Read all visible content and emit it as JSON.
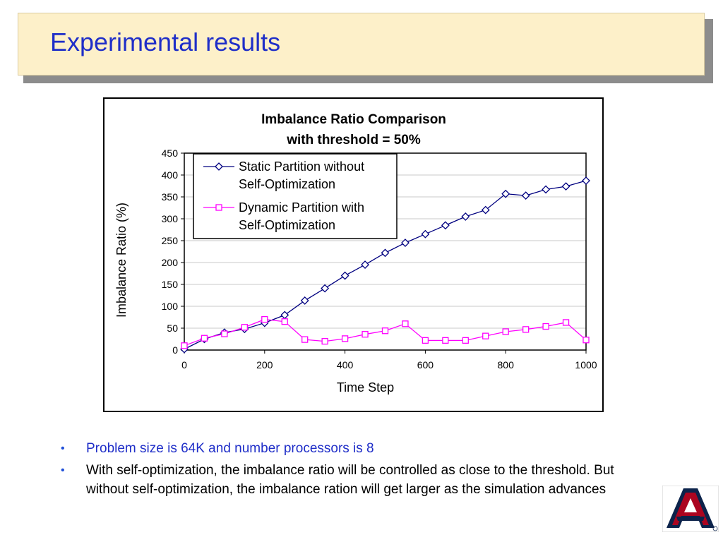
{
  "slide": {
    "title": "Experimental results",
    "bullets": [
      "Problem size is 64K and number processors is 8",
      "With self-optimization, the imbalance ratio will be controlled as close to the threshold. But without self-optimization, the imbalance ration will get larger as the simulation advances"
    ],
    "bullet_marker": "•",
    "title_color": "#1f2ec8",
    "title_background": "#fdf0c9"
  },
  "chart_data": {
    "type": "line",
    "title_lines": [
      "Imbalance Ratio Comparison",
      "with threshold = 50%"
    ],
    "xlabel": "Time Step",
    "ylabel": "Imbalance Ratio (%)",
    "xlim": [
      0,
      1000
    ],
    "ylim": [
      0,
      450
    ],
    "x_ticks": [
      "0",
      "200",
      "400",
      "600",
      "800",
      "1000"
    ],
    "y_ticks": [
      "0",
      "50",
      "100",
      "150",
      "200",
      "250",
      "300",
      "350",
      "400",
      "450"
    ],
    "grid": true,
    "legend_placement": "top-left",
    "x": [
      0,
      50,
      100,
      150,
      200,
      250,
      300,
      350,
      400,
      450,
      500,
      550,
      600,
      650,
      700,
      750,
      800,
      850,
      900,
      950,
      1000
    ],
    "series": [
      {
        "name_lines": [
          "Static Partition without",
          "Self-Optimization"
        ],
        "color": "#000080",
        "marker": "diamond",
        "values": [
          2,
          25,
          40,
          48,
          62,
          80,
          113,
          141,
          170,
          195,
          222,
          245,
          265,
          285,
          305,
          320,
          357,
          353,
          367,
          374,
          387
        ]
      },
      {
        "name_lines": [
          "Dynamic Partition with",
          "Self-Optimization"
        ],
        "color": "#ff00ff",
        "marker": "square",
        "values": [
          10,
          27,
          37,
          52,
          70,
          65,
          24,
          20,
          26,
          36,
          44,
          60,
          22,
          22,
          22,
          32,
          42,
          47,
          54,
          63,
          23
        ]
      }
    ]
  }
}
